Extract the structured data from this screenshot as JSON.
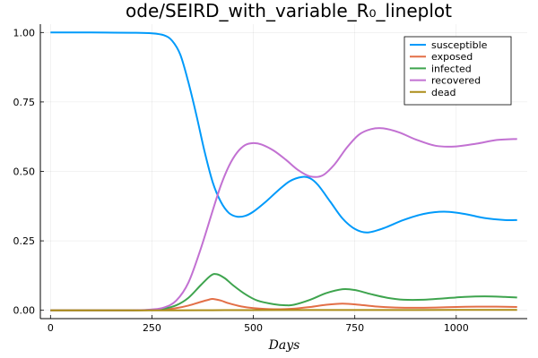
{
  "chart_data": {
    "type": "line",
    "title": "ode/SEIRD_with_variable_R₀_lineplot",
    "xlabel": "Days",
    "ylabel": "",
    "xlim": [
      -25,
      1175
    ],
    "ylim": [
      -0.03,
      1.03
    ],
    "xticks": [
      0,
      250,
      500,
      750,
      1000
    ],
    "yticks": [
      0.0,
      0.25,
      0.5,
      0.75,
      1.0
    ],
    "xtick_labels": [
      "0",
      "250",
      "500",
      "750",
      "1000"
    ],
    "ytick_labels": [
      "0.00",
      "0.25",
      "0.50",
      "0.75",
      "1.00"
    ],
    "grid": true,
    "legend_position": "top-right",
    "series": [
      {
        "name": "susceptible",
        "color": "#009AFA",
        "points": [
          [
            0,
            1.0
          ],
          [
            100,
            1.0
          ],
          [
            200,
            0.999
          ],
          [
            250,
            0.997
          ],
          [
            280,
            0.99
          ],
          [
            300,
            0.97
          ],
          [
            320,
            0.92
          ],
          [
            340,
            0.82
          ],
          [
            360,
            0.7
          ],
          [
            380,
            0.57
          ],
          [
            400,
            0.46
          ],
          [
            420,
            0.39
          ],
          [
            440,
            0.35
          ],
          [
            460,
            0.337
          ],
          [
            480,
            0.34
          ],
          [
            500,
            0.355
          ],
          [
            530,
            0.39
          ],
          [
            560,
            0.43
          ],
          [
            590,
            0.465
          ],
          [
            620,
            0.48
          ],
          [
            640,
            0.475
          ],
          [
            660,
            0.45
          ],
          [
            690,
            0.39
          ],
          [
            720,
            0.33
          ],
          [
            750,
            0.293
          ],
          [
            780,
            0.28
          ],
          [
            820,
            0.295
          ],
          [
            870,
            0.325
          ],
          [
            920,
            0.347
          ],
          [
            970,
            0.355
          ],
          [
            1020,
            0.347
          ],
          [
            1070,
            0.332
          ],
          [
            1120,
            0.325
          ],
          [
            1150,
            0.325
          ]
        ]
      },
      {
        "name": "exposed",
        "color": "#E36F47",
        "points": [
          [
            0,
            0.0
          ],
          [
            200,
            0.0
          ],
          [
            250,
            0.001
          ],
          [
            280,
            0.003
          ],
          [
            310,
            0.008
          ],
          [
            340,
            0.017
          ],
          [
            370,
            0.03
          ],
          [
            390,
            0.038
          ],
          [
            400,
            0.041
          ],
          [
            420,
            0.035
          ],
          [
            440,
            0.025
          ],
          [
            470,
            0.014
          ],
          [
            500,
            0.008
          ],
          [
            550,
            0.004
          ],
          [
            600,
            0.006
          ],
          [
            640,
            0.012
          ],
          [
            680,
            0.02
          ],
          [
            720,
            0.024
          ],
          [
            760,
            0.02
          ],
          [
            800,
            0.014
          ],
          [
            850,
            0.01
          ],
          [
            900,
            0.009
          ],
          [
            950,
            0.01
          ],
          [
            1000,
            0.012
          ],
          [
            1050,
            0.013
          ],
          [
            1100,
            0.013
          ],
          [
            1150,
            0.012
          ]
        ]
      },
      {
        "name": "infected",
        "color": "#3EA44E",
        "points": [
          [
            0,
            0.0
          ],
          [
            200,
            0.0
          ],
          [
            250,
            0.002
          ],
          [
            280,
            0.006
          ],
          [
            310,
            0.018
          ],
          [
            340,
            0.045
          ],
          [
            370,
            0.09
          ],
          [
            395,
            0.125
          ],
          [
            410,
            0.13
          ],
          [
            430,
            0.115
          ],
          [
            450,
            0.09
          ],
          [
            480,
            0.058
          ],
          [
            510,
            0.035
          ],
          [
            550,
            0.022
          ],
          [
            580,
            0.018
          ],
          [
            600,
            0.02
          ],
          [
            640,
            0.038
          ],
          [
            680,
            0.062
          ],
          [
            720,
            0.076
          ],
          [
            750,
            0.073
          ],
          [
            790,
            0.058
          ],
          [
            830,
            0.045
          ],
          [
            870,
            0.038
          ],
          [
            920,
            0.038
          ],
          [
            970,
            0.043
          ],
          [
            1020,
            0.048
          ],
          [
            1070,
            0.05
          ],
          [
            1120,
            0.048
          ],
          [
            1150,
            0.046
          ]
        ]
      },
      {
        "name": "recovered",
        "color": "#C271D2",
        "points": [
          [
            0,
            0.0
          ],
          [
            200,
            0.0
          ],
          [
            250,
            0.003
          ],
          [
            280,
            0.01
          ],
          [
            310,
            0.035
          ],
          [
            340,
            0.1
          ],
          [
            370,
            0.22
          ],
          [
            400,
            0.36
          ],
          [
            420,
            0.45
          ],
          [
            440,
            0.52
          ],
          [
            460,
            0.568
          ],
          [
            480,
            0.595
          ],
          [
            500,
            0.602
          ],
          [
            520,
            0.597
          ],
          [
            550,
            0.575
          ],
          [
            580,
            0.542
          ],
          [
            610,
            0.505
          ],
          [
            640,
            0.482
          ],
          [
            670,
            0.485
          ],
          [
            700,
            0.525
          ],
          [
            730,
            0.585
          ],
          [
            760,
            0.632
          ],
          [
            790,
            0.652
          ],
          [
            820,
            0.655
          ],
          [
            860,
            0.64
          ],
          [
            900,
            0.615
          ],
          [
            950,
            0.592
          ],
          [
            1000,
            0.59
          ],
          [
            1050,
            0.6
          ],
          [
            1100,
            0.613
          ],
          [
            1150,
            0.617
          ]
        ]
      },
      {
        "name": "dead",
        "color": "#AC8D18",
        "points": [
          [
            0,
            0.0
          ],
          [
            300,
            0.0
          ],
          [
            400,
            0.0003
          ],
          [
            500,
            0.0007
          ],
          [
            700,
            0.001
          ],
          [
            900,
            0.0012
          ],
          [
            1150,
            0.0014
          ]
        ]
      }
    ]
  }
}
